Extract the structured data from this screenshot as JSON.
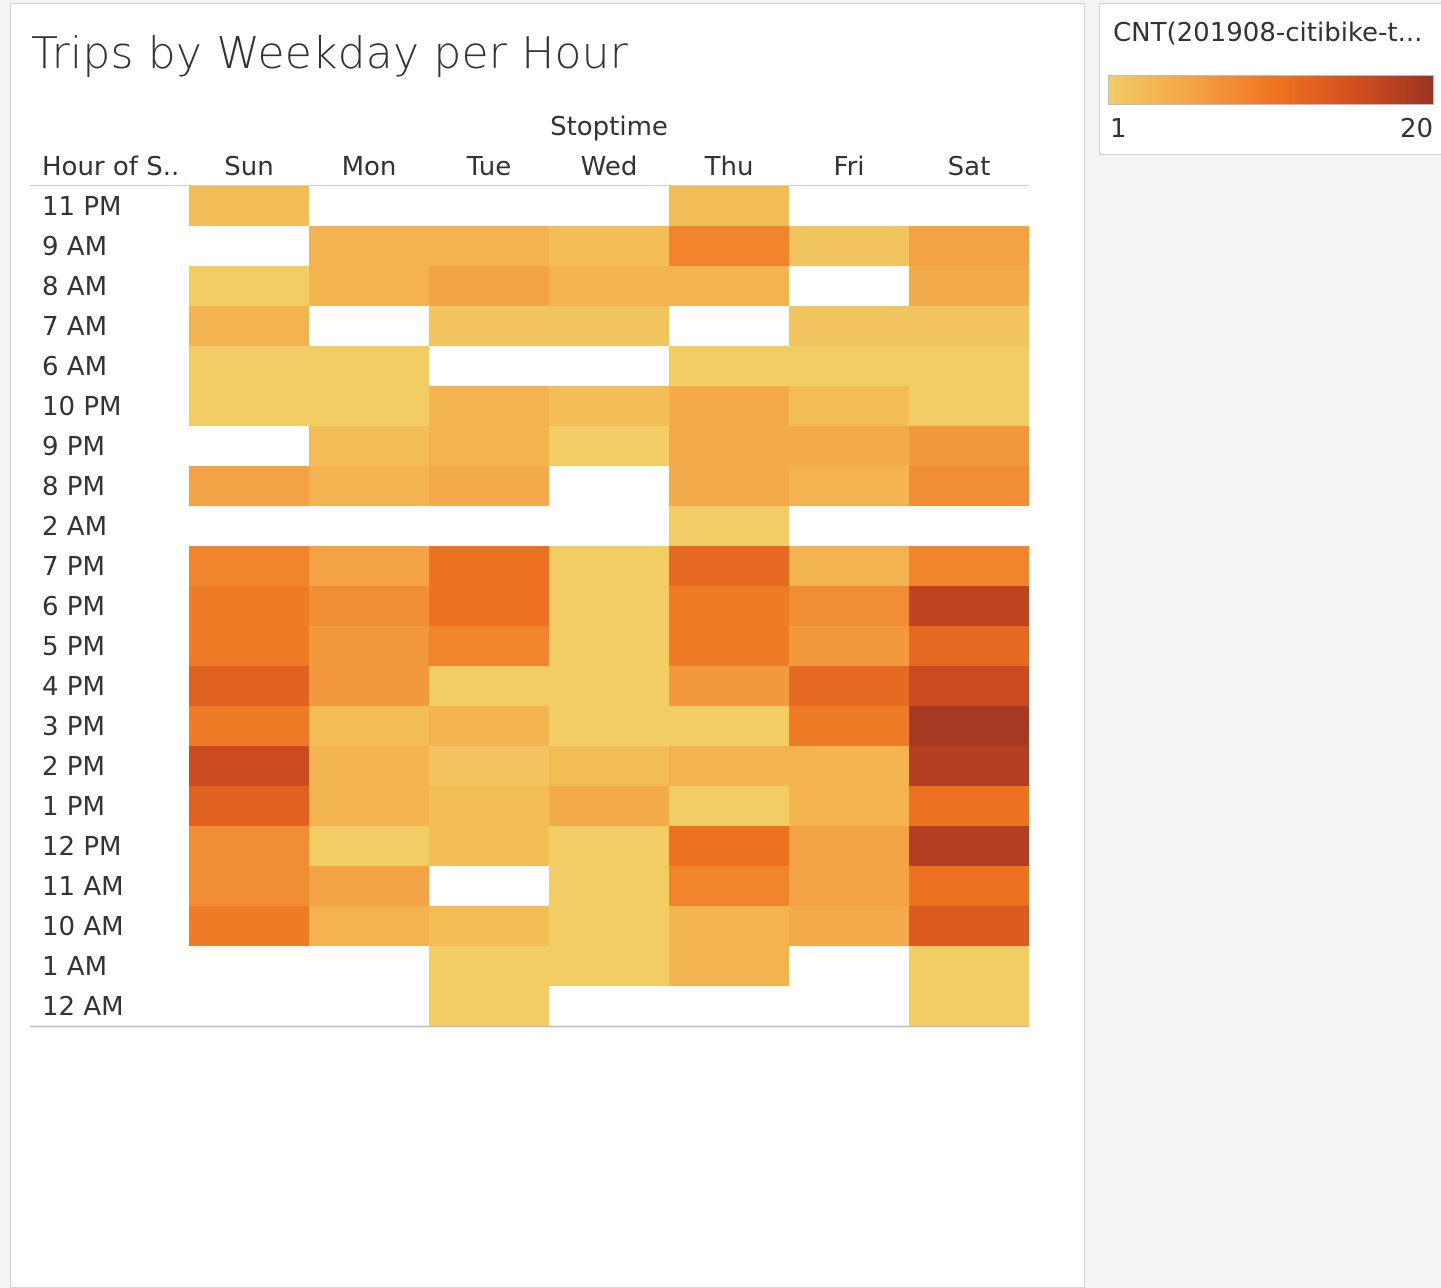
{
  "title": "Trips by Weekday per Hour",
  "legend": {
    "title": "CNT(201908-citibike-t...",
    "min_label": "1",
    "max_label": "20",
    "colors": [
      "#f2cd63",
      "#f3a447",
      "#ef7622",
      "#d4501f",
      "#9b3324"
    ]
  },
  "chart_data": {
    "type": "heatmap",
    "column_header": "Stoptime",
    "row_header": "Hour of S..",
    "columns": [
      "Sun",
      "Mon",
      "Tue",
      "Wed",
      "Thu",
      "Fri",
      "Sat"
    ],
    "rows": [
      "11 PM",
      "9 AM",
      "8 AM",
      "7 AM",
      "6 AM",
      "10 PM",
      "9 PM",
      "8 PM",
      "2 AM",
      "7 PM",
      "6 PM",
      "5 PM",
      "4 PM",
      "3 PM",
      "2 PM",
      "1 PM",
      "12 PM",
      "11 AM",
      "10 AM",
      "1 AM",
      "12 AM"
    ],
    "value_range": [
      1,
      20
    ],
    "values": [
      [
        3,
        null,
        null,
        null,
        3,
        null,
        null
      ],
      [
        null,
        4,
        4,
        3,
        9,
        2,
        6
      ],
      [
        1,
        4,
        6,
        4,
        4,
        null,
        5
      ],
      [
        4,
        null,
        2,
        2,
        null,
        2,
        2
      ],
      [
        1,
        1,
        null,
        null,
        1,
        1,
        1
      ],
      [
        1,
        1,
        4,
        3,
        5,
        3,
        1
      ],
      [
        null,
        3,
        4,
        1,
        5,
        5,
        7
      ],
      [
        6,
        4,
        5,
        null,
        5,
        4,
        8
      ],
      [
        null,
        null,
        null,
        null,
        1,
        null,
        null
      ],
      [
        9,
        6,
        11,
        1,
        12,
        4,
        9
      ],
      [
        10,
        8,
        11,
        1,
        10,
        8,
        17
      ],
      [
        10,
        7,
        9,
        1,
        10,
        7,
        12
      ],
      [
        13,
        7,
        1,
        1,
        7,
        12,
        16
      ],
      [
        10,
        3,
        4,
        1,
        1,
        10,
        19
      ],
      [
        16,
        4,
        2,
        3,
        4,
        4,
        18
      ],
      [
        13,
        4,
        3,
        5,
        1,
        4,
        11
      ],
      [
        8,
        1,
        3,
        1,
        11,
        6,
        18
      ],
      [
        8,
        6,
        null,
        1,
        9,
        6,
        11
      ],
      [
        10,
        4,
        3,
        1,
        4,
        5,
        14
      ],
      [
        null,
        null,
        1,
        1,
        4,
        null,
        1
      ],
      [
        null,
        null,
        1,
        null,
        null,
        null,
        1
      ]
    ],
    "grid": false,
    "legend_position": "right"
  }
}
